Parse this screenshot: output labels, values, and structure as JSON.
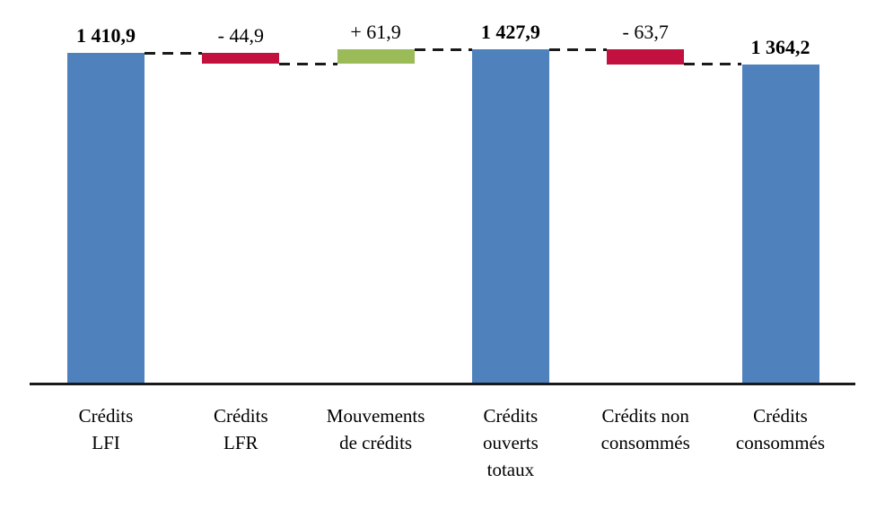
{
  "chart_data": {
    "type": "bar",
    "subtype": "waterfall",
    "title": "",
    "xlabel": "",
    "ylabel": "",
    "grid": false,
    "legend": false,
    "ylim": [
      0,
      1460
    ],
    "categories": [
      "Crédits LFI",
      "Crédits LFR",
      "Mouvements de crédits",
      "Crédits ouverts totaux",
      "Crédits non consommés",
      "Crédits consommés"
    ],
    "steps": [
      {
        "id": "credits-lfi",
        "category_lines": [
          "Crédits",
          "LFI"
        ],
        "kind": "total",
        "value": 1410.9,
        "label": "1 410,9",
        "bold": true,
        "color": "blue"
      },
      {
        "id": "credits-lfr",
        "category_lines": [
          "Crédits",
          "LFR"
        ],
        "kind": "delta",
        "value": -44.9,
        "label": "- 44,9",
        "bold": false,
        "color": "red"
      },
      {
        "id": "mouvements-de-credits",
        "category_lines": [
          "Mouvements",
          "de crédits"
        ],
        "kind": "delta",
        "value": 61.9,
        "label": "+ 61,9",
        "bold": false,
        "color": "green"
      },
      {
        "id": "credits-ouverts-totaux",
        "category_lines": [
          "Crédits",
          "ouverts",
          "totaux"
        ],
        "kind": "total",
        "value": 1427.9,
        "label": "1 427,9",
        "bold": true,
        "color": "blue"
      },
      {
        "id": "credits-non-consommes",
        "category_lines": [
          "Crédits non",
          "consommés"
        ],
        "kind": "delta",
        "value": -63.7,
        "label": "- 63,7",
        "bold": false,
        "color": "red"
      },
      {
        "id": "credits-consommes",
        "category_lines": [
          "Crédits",
          "consommés"
        ],
        "kind": "total",
        "value": 1364.2,
        "label": "1 364,2",
        "bold": true,
        "color": "blue"
      }
    ],
    "colors": {
      "blue": "#4F81BD",
      "red": "#C2113F",
      "green": "#9BBB59",
      "axis": "#1A1A1A",
      "connector": "#1A1A1A",
      "text": "#000000"
    },
    "connector_style": "dashed lines linking running-total levels between adjacent bars"
  }
}
